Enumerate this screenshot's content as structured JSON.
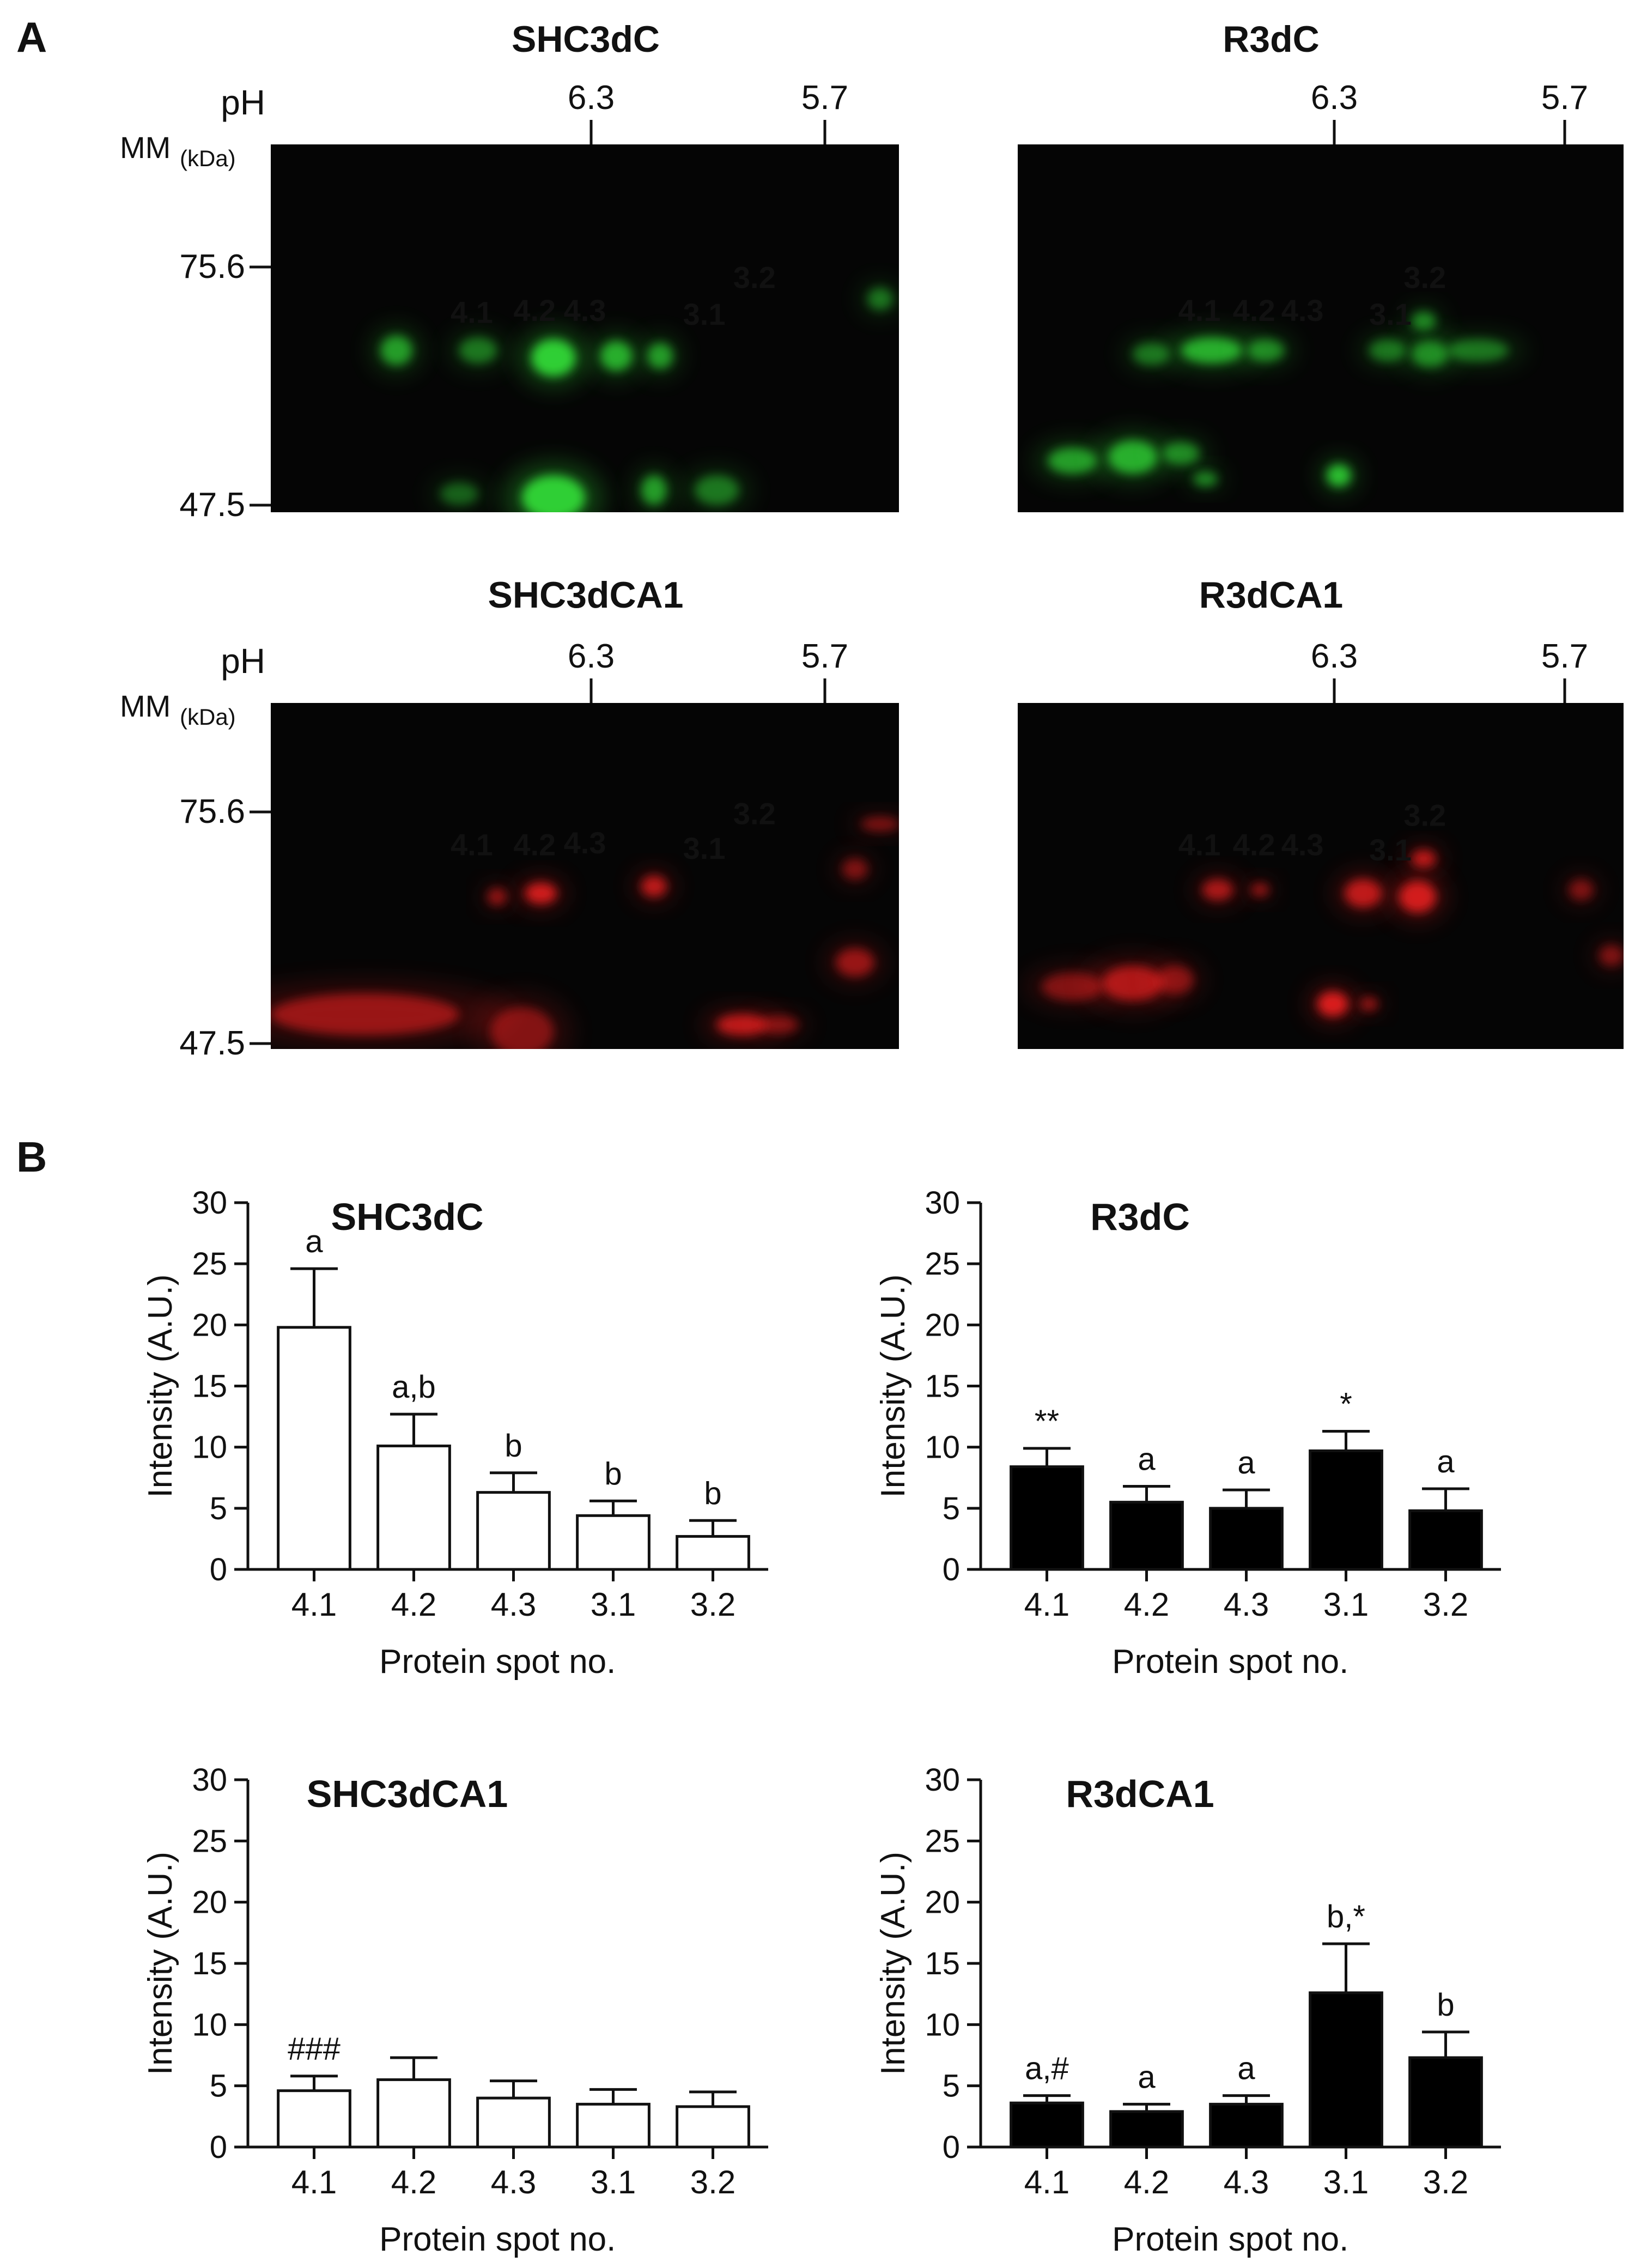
{
  "panel_a": {
    "label": "A",
    "y_axis_label": "MM",
    "y_axis_unit": "(kDa)",
    "ph_label": "pH",
    "ph_ticks": [
      "6.3",
      "5.7"
    ],
    "mm_ticks": [
      "75.6",
      "47.5"
    ],
    "gels": [
      {
        "title": "SHC3dC",
        "color": "#34e83a",
        "spot_labels": [
          "4.1",
          "4.2",
          "4.3",
          "3.1",
          "3.2"
        ]
      },
      {
        "title": "R3dC",
        "color": "#34e83a",
        "spot_labels": [
          "4.1",
          "4.2",
          "4.3",
          "3.1",
          "3.2"
        ]
      },
      {
        "title": "SHC3dCA1",
        "color": "#ff2020",
        "spot_labels": [
          "4.1",
          "4.2",
          "4.3",
          "3.1",
          "3.2"
        ]
      },
      {
        "title": "R3dCA1",
        "color": "#ff2020",
        "spot_labels": [
          "4.1",
          "4.2",
          "4.3",
          "3.1",
          "3.2"
        ]
      }
    ]
  },
  "panel_b": {
    "label": "B"
  },
  "chart_data": [
    {
      "type": "bar",
      "title": "SHC3dC",
      "categories": [
        "4.1",
        "4.2",
        "4.3",
        "3.1",
        "3.2"
      ],
      "values": [
        19.8,
        10.1,
        6.3,
        4.4,
        2.7
      ],
      "errors": [
        4.8,
        2.6,
        1.6,
        1.2,
        1.3
      ],
      "annotations": [
        "a",
        "a,b",
        "b",
        "b",
        "b"
      ],
      "bar_fill": "#ffffff",
      "xlabel": "Protein spot no.",
      "ylabel": "Intensity (A.U.)",
      "ylim": [
        0,
        30
      ],
      "yticks": [
        0,
        5,
        10,
        15,
        20,
        25,
        30
      ]
    },
    {
      "type": "bar",
      "title": "R3dC",
      "categories": [
        "4.1",
        "4.2",
        "4.3",
        "3.1",
        "3.2"
      ],
      "values": [
        8.4,
        5.5,
        5.0,
        9.7,
        4.8
      ],
      "errors": [
        1.5,
        1.3,
        1.5,
        1.6,
        1.8
      ],
      "annotations": [
        "**",
        "a",
        "a",
        "*",
        "a"
      ],
      "bar_fill": "#000000",
      "xlabel": "Protein spot no.",
      "ylabel": "Intensity (A.U.)",
      "ylim": [
        0,
        30
      ],
      "yticks": [
        0,
        5,
        10,
        15,
        20,
        25,
        30
      ]
    },
    {
      "type": "bar",
      "title": "SHC3dCA1",
      "categories": [
        "4.1",
        "4.2",
        "4.3",
        "3.1",
        "3.2"
      ],
      "values": [
        4.6,
        5.5,
        4.0,
        3.5,
        3.3
      ],
      "errors": [
        1.2,
        1.8,
        1.4,
        1.2,
        1.2
      ],
      "annotations": [
        "###",
        "",
        "",
        "",
        ""
      ],
      "bar_fill": "#ffffff",
      "xlabel": "Protein spot no.",
      "ylabel": "Intensity (A.U.)",
      "ylim": [
        0,
        30
      ],
      "yticks": [
        0,
        5,
        10,
        15,
        20,
        25,
        30
      ]
    },
    {
      "type": "bar",
      "title": "R3dCA1",
      "categories": [
        "4.1",
        "4.2",
        "4.3",
        "3.1",
        "3.2"
      ],
      "values": [
        3.6,
        2.9,
        3.5,
        12.6,
        7.3
      ],
      "errors": [
        0.6,
        0.6,
        0.7,
        4.0,
        2.1
      ],
      "annotations": [
        "a,#",
        "a",
        "a",
        "b,*",
        "b"
      ],
      "bar_fill": "#000000",
      "xlabel": "Protein spot no.",
      "ylabel": "Intensity (A.U.)",
      "ylim": [
        0,
        30
      ],
      "yticks": [
        0,
        5,
        10,
        15,
        20,
        25,
        30
      ]
    }
  ]
}
